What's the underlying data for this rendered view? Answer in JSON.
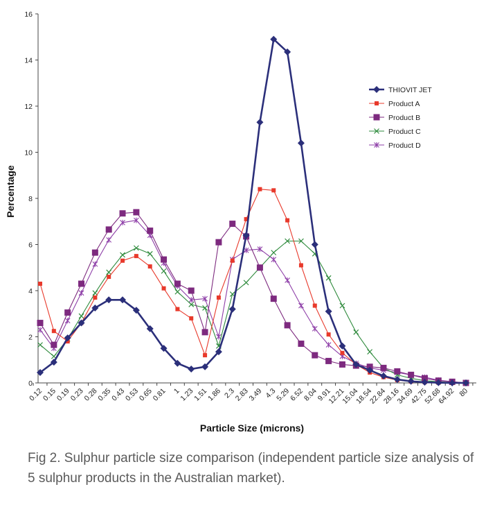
{
  "caption": "Fig 2.  Sulphur particle size comparison (independent particle size analysis of 5 sulphur products in the Australian market).",
  "chart_data": {
    "type": "line",
    "title": "",
    "xlabel": "Particle Size (microns)",
    "ylabel": "Percentage",
    "ylim": [
      0,
      16
    ],
    "yticks": [
      0,
      2,
      4,
      6,
      8,
      10,
      12,
      14,
      16
    ],
    "grid": false,
    "legend_position": "right",
    "categories": [
      "0.12",
      "0.15",
      "0.19",
      "0.23",
      "0.28",
      "0.35",
      "0.43",
      "0.53",
      "0.65",
      "0.81",
      "1",
      "1.23",
      "1.51",
      "1.86",
      "2.3",
      "2.83",
      "3.49",
      "4.3",
      "5.29",
      "6.52",
      "8.04",
      "9.91",
      "12.21",
      "15.04",
      "18.54",
      "22.84",
      "28.16",
      "34.69",
      "42.75",
      "52.68",
      "64.92",
      "80"
    ],
    "series": [
      {
        "name": "THIOVIT JET",
        "color": "#2b2f7a",
        "marker": "diamond",
        "values": [
          0.45,
          0.9,
          1.95,
          2.6,
          3.25,
          3.6,
          3.6,
          3.15,
          2.35,
          1.5,
          0.85,
          0.6,
          0.7,
          1.35,
          3.2,
          6.4,
          11.3,
          14.9,
          14.35,
          10.4,
          6.0,
          3.1,
          1.6,
          0.8,
          0.55,
          0.3,
          0.15,
          0.07,
          0.03,
          0.01,
          0.0,
          0.0
        ]
      },
      {
        "name": "Product A",
        "color": "#e8392b",
        "marker": "square-small",
        "values": [
          4.3,
          2.25,
          1.8,
          2.6,
          3.7,
          4.6,
          5.3,
          5.5,
          5.05,
          4.1,
          3.2,
          2.8,
          1.2,
          3.7,
          5.3,
          7.1,
          8.4,
          8.35,
          7.05,
          5.1,
          3.35,
          2.1,
          1.3,
          0.8,
          0.45,
          0.25,
          0.12,
          0.06,
          0.03,
          0.01,
          0.0,
          0.0
        ]
      },
      {
        "name": "Product B",
        "color": "#7d2a7f",
        "marker": "square",
        "values": [
          2.6,
          1.65,
          3.05,
          4.3,
          5.65,
          6.65,
          7.35,
          7.4,
          6.6,
          5.35,
          4.3,
          4.0,
          2.2,
          6.1,
          6.9,
          6.35,
          5.0,
          3.65,
          2.5,
          1.7,
          1.2,
          0.95,
          0.8,
          0.75,
          0.7,
          0.65,
          0.5,
          0.35,
          0.2,
          0.1,
          0.05,
          0.0
        ]
      },
      {
        "name": "Product C",
        "color": "#2e8a3c",
        "marker": "x",
        "values": [
          1.65,
          1.15,
          1.9,
          2.9,
          3.9,
          4.8,
          5.55,
          5.85,
          5.6,
          4.85,
          3.95,
          3.4,
          3.25,
          1.6,
          3.85,
          4.35,
          5.0,
          5.65,
          6.15,
          6.15,
          5.6,
          4.55,
          3.35,
          2.2,
          1.35,
          0.65,
          0.35,
          0.2,
          0.1,
          0.05,
          0.02,
          0.0
        ]
      },
      {
        "name": "Product D",
        "color": "#8e3fa8",
        "marker": "star",
        "values": [
          2.3,
          1.5,
          2.7,
          3.9,
          5.15,
          6.2,
          6.95,
          7.05,
          6.4,
          5.2,
          4.2,
          3.6,
          3.65,
          2.0,
          5.35,
          5.75,
          5.8,
          5.35,
          4.45,
          3.35,
          2.35,
          1.65,
          1.15,
          0.85,
          0.65,
          0.55,
          0.45,
          0.35,
          0.25,
          0.12,
          0.05,
          0.0
        ]
      }
    ]
  }
}
